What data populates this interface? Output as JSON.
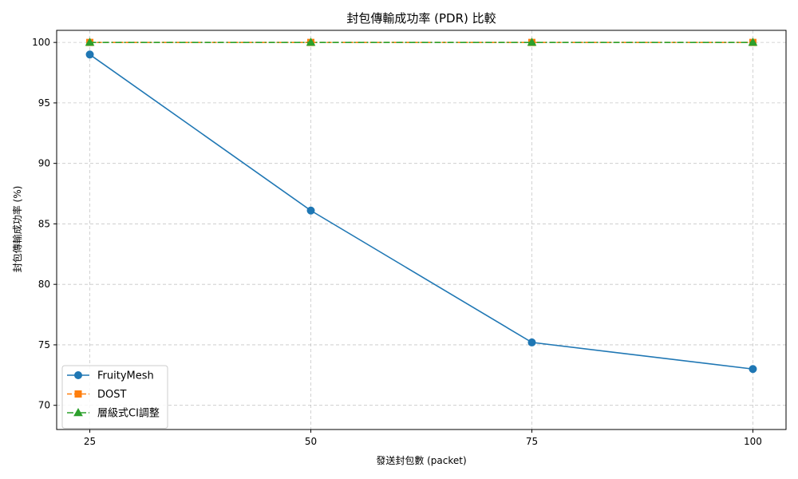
{
  "chart_data": {
    "type": "line",
    "title": "封包傳輸成功率 (PDR) 比較",
    "xlabel": "發送封包數 (packet)",
    "ylabel": "封包傳輸成功率 (%)",
    "x": [
      25,
      50,
      75,
      100
    ],
    "x_tick_labels": [
      "25",
      "50",
      "75",
      "100"
    ],
    "ylim": [
      68,
      101
    ],
    "y_ticks": [
      70,
      75,
      80,
      85,
      90,
      95,
      100
    ],
    "y_tick_labels": [
      "70",
      "75",
      "80",
      "85",
      "90",
      "95",
      "100"
    ],
    "grid": true,
    "legend_position": "lower-left",
    "series": [
      {
        "name": "FruityMesh",
        "values": [
          99.0,
          86.1,
          75.2,
          73.0
        ],
        "color": "#1f77b4",
        "marker": "circle",
        "linestyle": "solid"
      },
      {
        "name": "DOST",
        "values": [
          100,
          100,
          100,
          100
        ],
        "color": "#ff7f0e",
        "marker": "square",
        "linestyle": "dashed"
      },
      {
        "name": "層級式CI調整",
        "values": [
          100,
          100,
          100,
          100
        ],
        "color": "#2ca02c",
        "marker": "triangle",
        "linestyle": "dashdot"
      }
    ]
  }
}
